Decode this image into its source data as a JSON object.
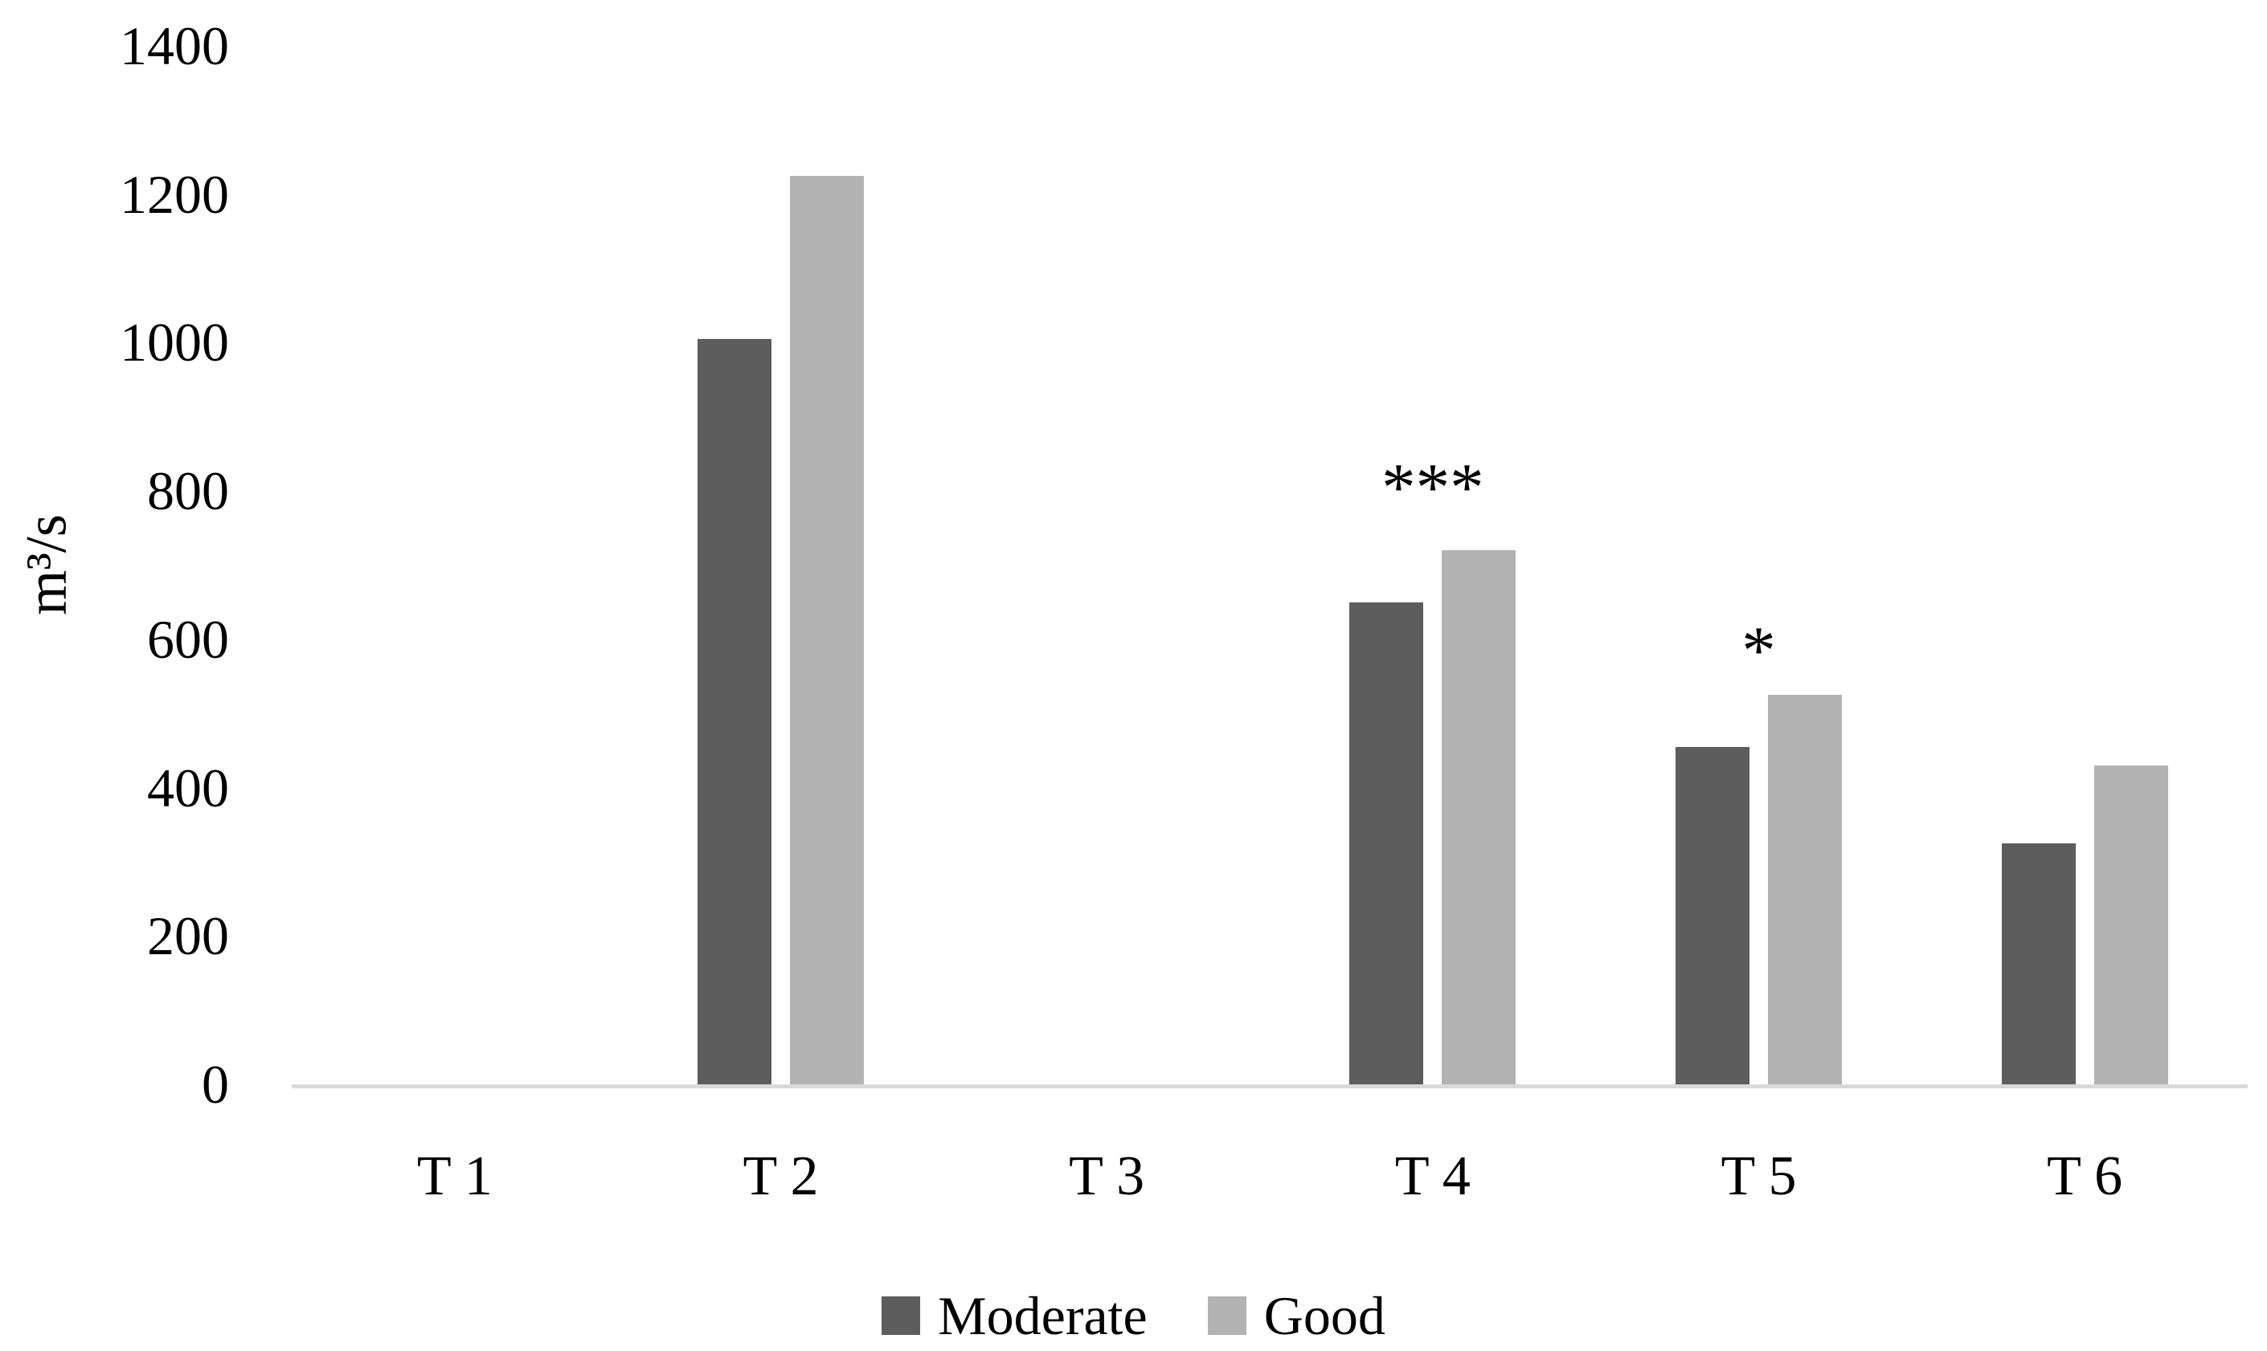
{
  "chart_data": {
    "type": "bar",
    "title": "",
    "xlabel": "",
    "ylabel": "m³/s",
    "ylim": [
      0,
      1400
    ],
    "yticks": [
      0,
      200,
      400,
      600,
      800,
      1000,
      1200,
      1400
    ],
    "grid": false,
    "legend_position": "bottom-center",
    "background_color": "#ffffff",
    "axis_line_color": "#d9d9d9",
    "text_color": "#000000",
    "categories": [
      "T 1",
      "T 2",
      "T 3",
      "T 4",
      "T 5",
      "T 6"
    ],
    "series": [
      {
        "name": "Moderate",
        "color": "#5d5d5d",
        "values": [
          0,
          1005,
          0,
          650,
          455,
          325
        ]
      },
      {
        "name": "Good",
        "color": "#b3b3b3",
        "values": [
          0,
          1225,
          0,
          720,
          525,
          430
        ]
      }
    ],
    "annotations": [
      {
        "text": "***",
        "category": "T 4",
        "value_y": 820
      },
      {
        "text": "*",
        "category": "T 5",
        "value_y": 600
      }
    ]
  }
}
